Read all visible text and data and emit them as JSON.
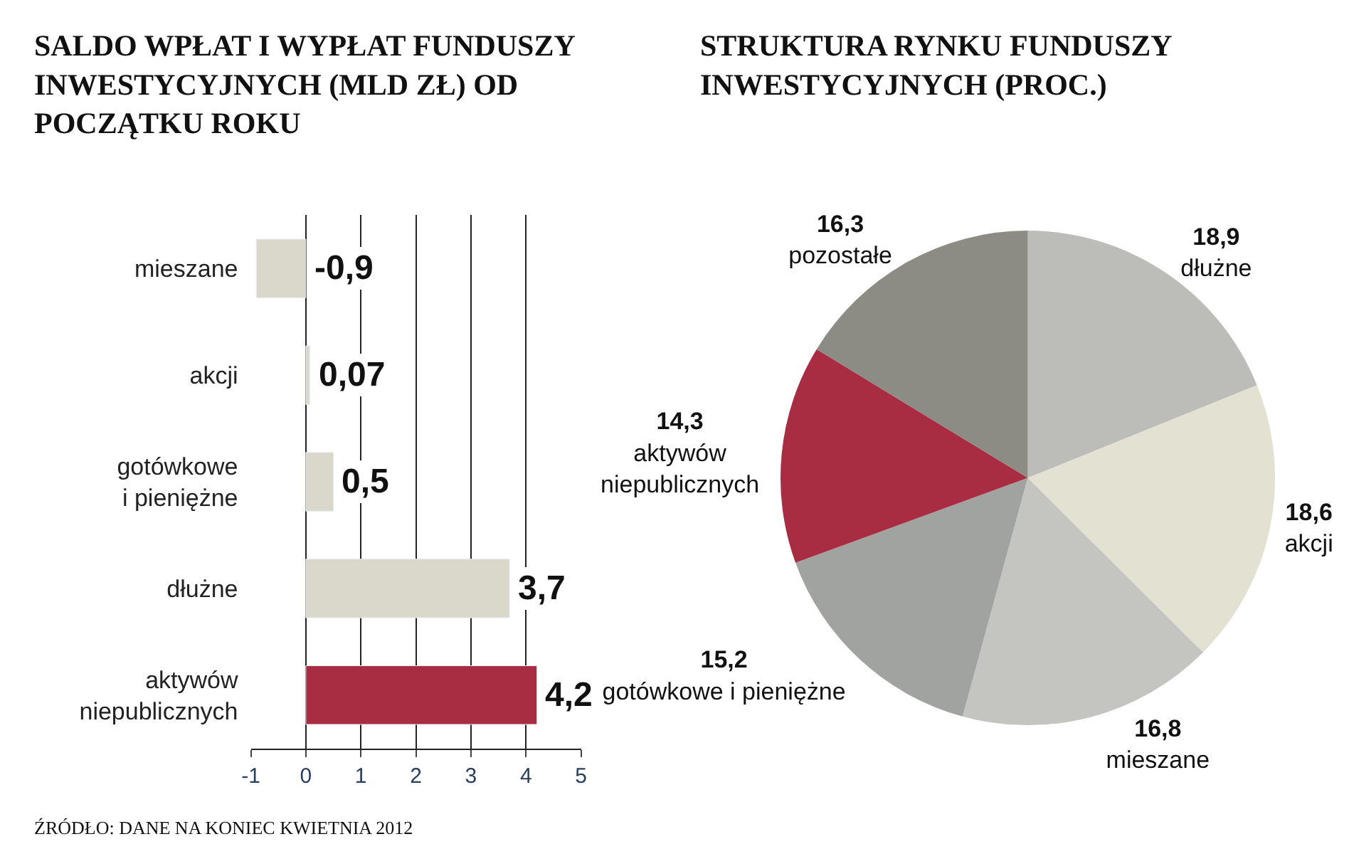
{
  "chart_data": [
    {
      "type": "bar",
      "orientation": "horizontal",
      "title": "SALDO WPŁAT I WYPŁAT FUNDUSZY INWESTYCYJNYCH (MLD ZŁ) OD POCZĄTKU ROKU",
      "categories": [
        "mieszane",
        "akcji",
        "gotówkowe\ni pieniężne",
        "dłużne",
        "aktywów\nniepublicznych"
      ],
      "values": [
        -0.9,
        0.07,
        0.5,
        3.7,
        4.2
      ],
      "colors": [
        "#d9d8cb",
        "#d9d8cb",
        "#d9d8cb",
        "#d9d8cb",
        "#a82c42"
      ],
      "value_labels": [
        "-0,9",
        "0,07",
        "0,5",
        "3,7",
        "4,2"
      ],
      "xlim": [
        -1,
        5
      ],
      "xticks": [
        -1,
        0,
        1,
        2,
        3,
        4,
        5
      ],
      "grid": "x",
      "annotations": [
        "ŹRÓDŁO: DANE NA KONIEC KWIETNIA 2012"
      ]
    },
    {
      "type": "pie",
      "title": "STRUKTURA RYNKU FUNDUSZY INWESTYCYJNYCH (PROC.)",
      "categories": [
        "dłużne",
        "akcji",
        "mieszane",
        "gotówkowe i pieniężne",
        "aktywów\nniepublicznych",
        "pozostałe"
      ],
      "values": [
        18.9,
        18.6,
        16.8,
        15.2,
        14.3,
        16.3
      ],
      "colors": [
        "#bcbcb8",
        "#e2e1d2",
        "#c4c4c0",
        "#a1a3a0",
        "#a82c42",
        "#8c8c84"
      ],
      "value_labels": [
        "18,9",
        "18,6",
        "16,8",
        "15,2",
        "14,3",
        "16,3"
      ]
    }
  ]
}
